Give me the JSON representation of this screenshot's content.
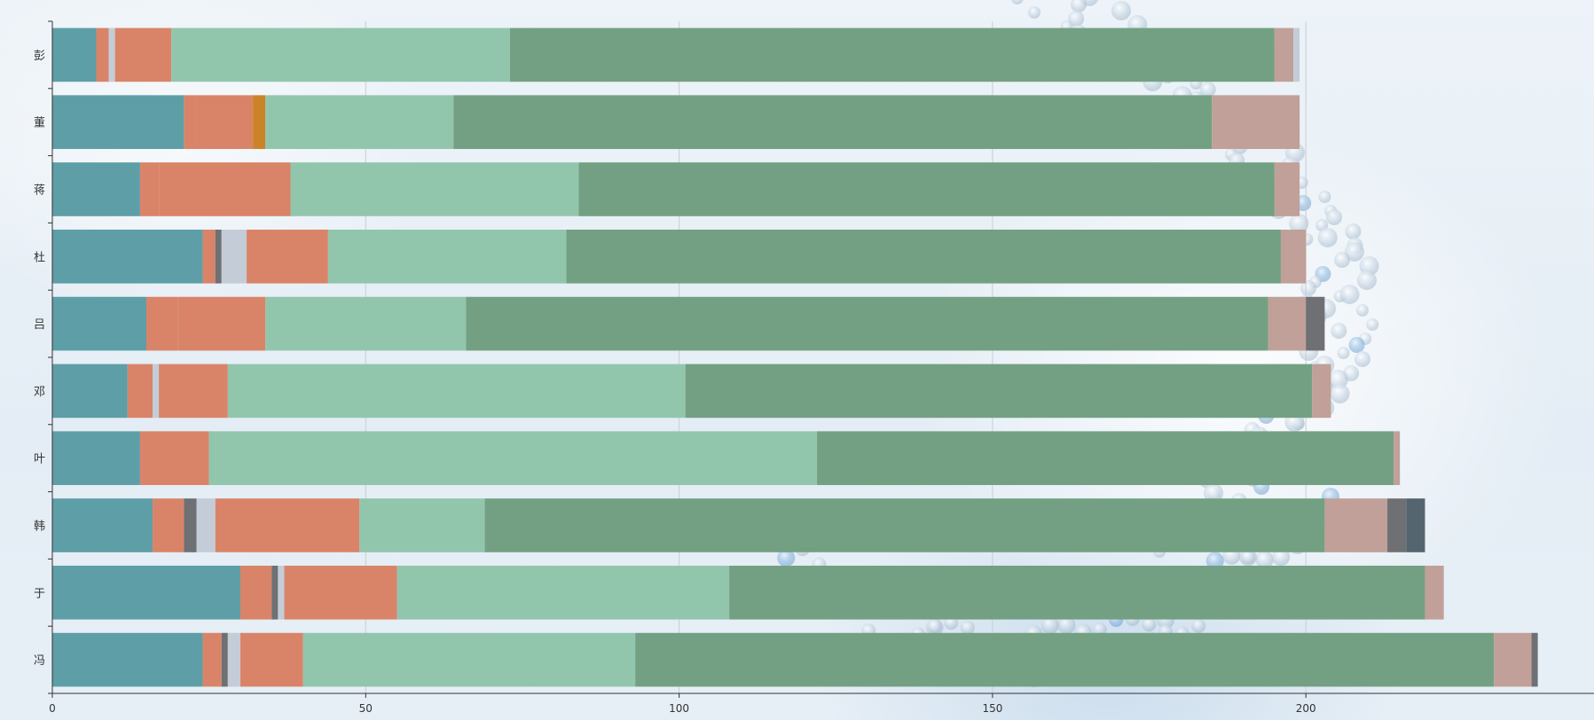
{
  "chart_data": {
    "type": "bar",
    "orientation": "horizontal",
    "stacked": true,
    "categories": [
      "冯",
      "于",
      "韩",
      "叶",
      "邓",
      "吕",
      "杜",
      "蒋",
      "董",
      "彭"
    ],
    "xlim": [
      0,
      246
    ],
    "xticks": [
      0,
      50,
      100,
      150,
      200
    ],
    "grid": "vertical",
    "legend": "none",
    "series": [
      {
        "color": "#5e9ea7",
        "values": [
          24,
          30,
          16,
          14,
          12,
          15,
          24,
          14,
          21,
          7
        ]
      },
      {
        "color": "#d98468",
        "values": [
          3,
          5,
          5,
          0,
          4,
          5,
          2,
          3,
          2,
          2
        ]
      },
      {
        "color": "#6e7073",
        "values": [
          1,
          1,
          2,
          0,
          0,
          0,
          1,
          0,
          0,
          0
        ]
      },
      {
        "color": "#c4cdd7",
        "values": [
          2,
          1,
          3,
          0,
          1,
          0,
          4,
          0,
          0,
          1
        ]
      },
      {
        "color": "#d98468",
        "values": [
          10,
          18,
          23,
          11,
          11,
          14,
          13,
          21,
          9,
          9
        ]
      },
      {
        "color": "#cb8328",
        "values": [
          0,
          0,
          0,
          0,
          0,
          0,
          0,
          0,
          2,
          0
        ]
      },
      {
        "color": "#91c6ad",
        "values": [
          53,
          53,
          20,
          97,
          73,
          32,
          38,
          46,
          30,
          54
        ]
      },
      {
        "color": "#73a083",
        "values": [
          137,
          111,
          134,
          92,
          100,
          128,
          114,
          111,
          121,
          122
        ]
      },
      {
        "color": "#c0a098",
        "values": [
          6,
          3,
          10,
          1,
          3,
          6,
          4,
          4,
          14,
          3
        ]
      },
      {
        "color": "#6e7073",
        "values": [
          1,
          0,
          3,
          0,
          0,
          3,
          0,
          0,
          0,
          0
        ]
      },
      {
        "color": "#55656f",
        "values": [
          0,
          0,
          3,
          0,
          0,
          0,
          0,
          0,
          0,
          0
        ]
      },
      {
        "color": "#c4cdd7",
        "values": [
          0,
          0,
          0,
          0,
          0,
          0,
          0,
          0,
          0,
          1
        ]
      }
    ]
  }
}
